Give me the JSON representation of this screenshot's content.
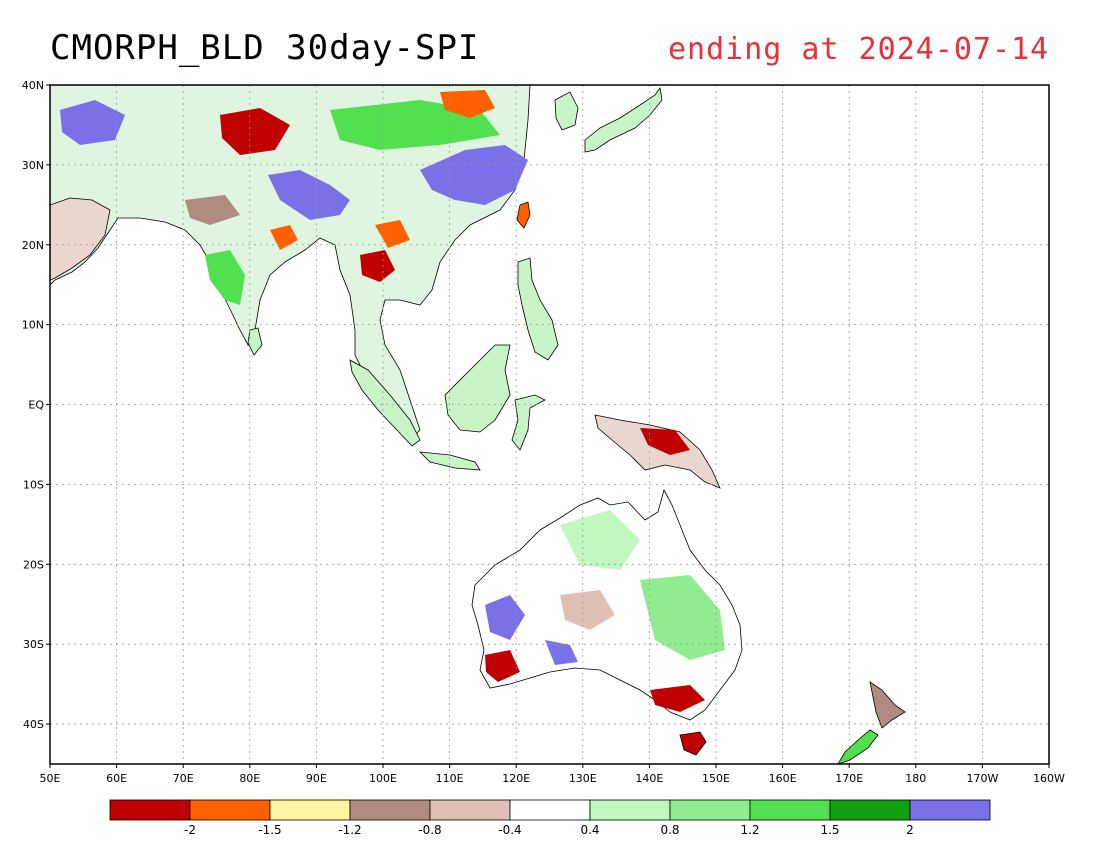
{
  "title": "CMORPH_BLD 30day-SPI",
  "subtitle": "ending at 2024-07-14",
  "subtitle_color": "#e8303a",
  "lat_labels": [
    "40N",
    "30N",
    "20N",
    "10N",
    "EQ",
    "10S",
    "20S",
    "30S",
    "40S"
  ],
  "lon_labels": [
    "50E",
    "60E",
    "70E",
    "80E",
    "90E",
    "100E",
    "110E",
    "120E",
    "130E",
    "140E",
    "150E",
    "160E",
    "170E",
    "180",
    "170W",
    "160W"
  ],
  "colorbar": {
    "colors": [
      "#c00000",
      "#ff6000",
      "#fff5a0",
      "#b08c80",
      "#e0c0b4",
      "#ffffff",
      "#c0f8c0",
      "#90ec90",
      "#50e050",
      "#10a010",
      "#7a70e8"
    ],
    "labels": [
      "-2",
      "-1.5",
      "-1.2",
      "-0.8",
      "-0.4",
      "0.4",
      "0.8",
      "1.2",
      "1.5",
      "2"
    ]
  }
}
